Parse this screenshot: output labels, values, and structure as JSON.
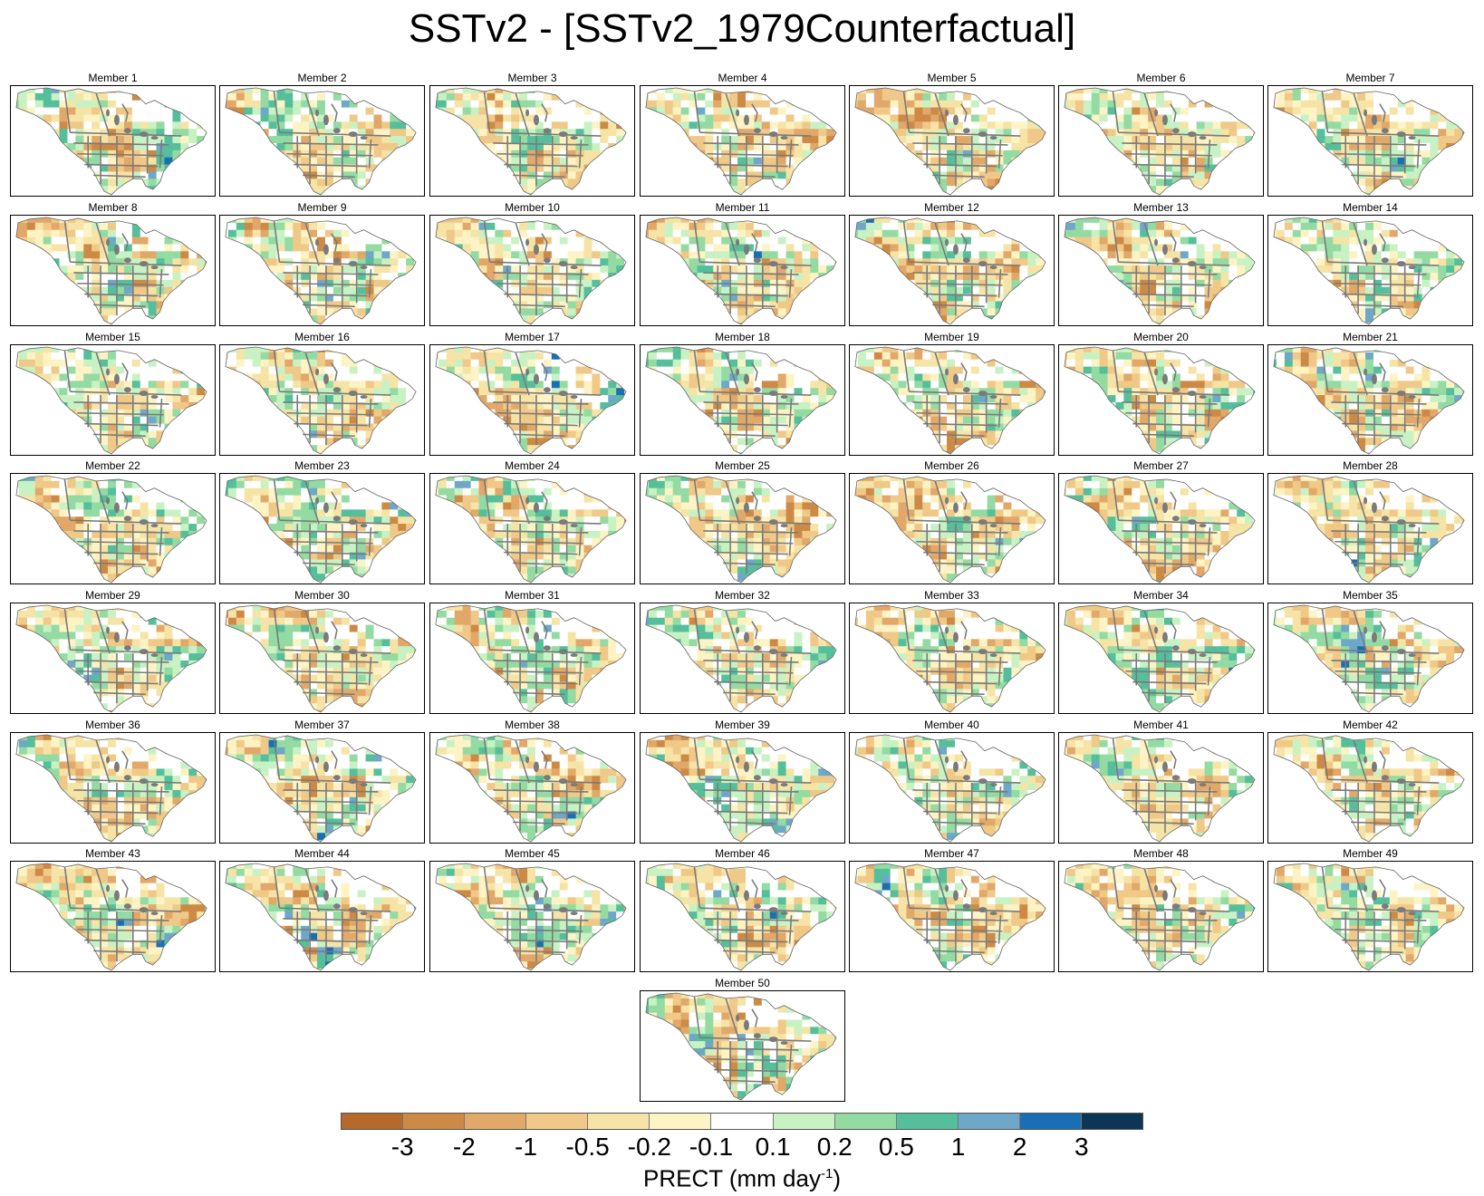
{
  "title": "SSTv2 - [SSTv2_1979Counterfactual]",
  "panel_prefix": "Member",
  "members": [
    1,
    2,
    3,
    4,
    5,
    6,
    7,
    8,
    9,
    10,
    11,
    12,
    13,
    14,
    15,
    16,
    17,
    18,
    19,
    20,
    21,
    22,
    23,
    24,
    25,
    26,
    27,
    28,
    29,
    30,
    31,
    32,
    33,
    34,
    35,
    36,
    37,
    38,
    39,
    40,
    41,
    42,
    43,
    44,
    45,
    46,
    47,
    48,
    49,
    50
  ],
  "colorbar": {
    "colors": [
      "#b5692a",
      "#cd8a46",
      "#e1a869",
      "#f0c887",
      "#f6e3a6",
      "#fdf3c4",
      "#ffffff",
      "#c9f2c4",
      "#93dba2",
      "#55bf9c",
      "#6fa7c9",
      "#1a6fb4",
      "#0c3654"
    ],
    "labels": [
      "-3",
      "-2",
      "-1",
      "-0.5",
      "-0.2",
      "-0.1",
      "0.1",
      "0.2",
      "0.5",
      "1",
      "2",
      "3"
    ],
    "variable": "PRECT (mm day",
    "unit_exponent": "-1",
    "unit_close": ")"
  }
}
